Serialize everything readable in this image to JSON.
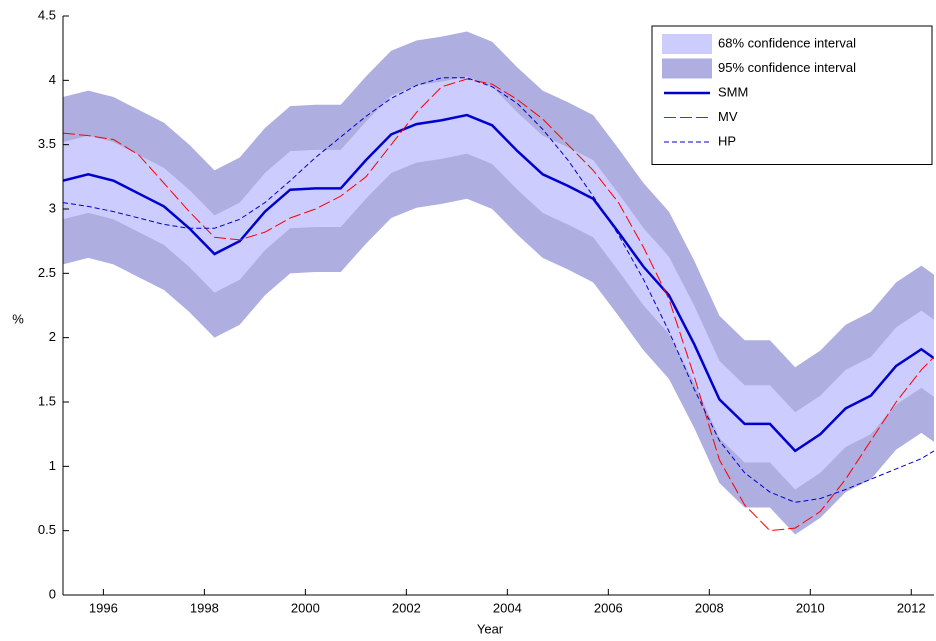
{
  "chart_data": {
    "type": "fan",
    "x_label": "Year",
    "y_label": "%",
    "xlim": [
      1995.2,
      2012.45
    ],
    "ylim": [
      0,
      4.5
    ],
    "xticks": [
      1996,
      1998,
      2000,
      2002,
      2004,
      2006,
      2008,
      2010,
      2012
    ],
    "yticks": [
      0,
      0.5,
      1,
      1.5,
      2,
      2.5,
      3,
      3.5,
      4,
      4.5
    ],
    "legend": "upper right",
    "x": [
      1995.2,
      1995.7,
      1996.2,
      1996.7,
      1997.2,
      1997.7,
      1998.2,
      1998.7,
      1999.2,
      1999.7,
      2000.2,
      2000.7,
      2001.2,
      2001.7,
      2002.2,
      2002.7,
      2003.2,
      2003.7,
      2004.2,
      2004.7,
      2005.2,
      2005.7,
      2006.2,
      2006.7,
      2007.2,
      2007.7,
      2008.2,
      2008.7,
      2009.2,
      2009.7,
      2010.2,
      2010.7,
      2011.2,
      2011.7,
      2012.2,
      2012.45
    ],
    "bands": [
      {
        "name": "68% confidence interval",
        "color": "#ccccff",
        "upper": [
          3.52,
          3.57,
          3.52,
          3.42,
          3.32,
          3.15,
          2.95,
          3.05,
          3.28,
          3.45,
          3.46,
          3.46,
          3.68,
          3.88,
          3.96,
          3.99,
          4.03,
          3.95,
          3.75,
          3.57,
          3.48,
          3.38,
          3.12,
          2.85,
          2.63,
          2.25,
          1.82,
          1.63,
          1.63,
          1.42,
          1.55,
          1.75,
          1.85,
          2.08,
          2.21,
          2.14
        ],
        "lower": [
          2.92,
          2.97,
          2.92,
          2.82,
          2.72,
          2.55,
          2.35,
          2.45,
          2.68,
          2.85,
          2.86,
          2.86,
          3.08,
          3.28,
          3.36,
          3.39,
          3.43,
          3.35,
          3.15,
          2.97,
          2.88,
          2.78,
          2.52,
          2.25,
          2.03,
          1.65,
          1.22,
          1.03,
          1.03,
          0.82,
          0.95,
          1.15,
          1.25,
          1.48,
          1.61,
          1.54
        ]
      },
      {
        "name": "95% confidence interval",
        "color": "#aeaee0",
        "upper": [
          3.87,
          3.92,
          3.87,
          3.77,
          3.67,
          3.5,
          3.3,
          3.4,
          3.63,
          3.8,
          3.81,
          3.81,
          4.03,
          4.23,
          4.31,
          4.34,
          4.38,
          4.3,
          4.1,
          3.92,
          3.83,
          3.73,
          3.47,
          3.2,
          2.98,
          2.6,
          2.17,
          1.98,
          1.98,
          1.77,
          1.9,
          2.1,
          2.2,
          2.43,
          2.56,
          2.49
        ],
        "lower": [
          2.57,
          2.62,
          2.57,
          2.47,
          2.37,
          2.2,
          2.0,
          2.1,
          2.33,
          2.5,
          2.51,
          2.51,
          2.73,
          2.93,
          3.01,
          3.04,
          3.08,
          3.0,
          2.8,
          2.62,
          2.53,
          2.43,
          2.17,
          1.9,
          1.68,
          1.3,
          0.87,
          0.68,
          0.68,
          0.47,
          0.6,
          0.8,
          0.9,
          1.13,
          1.26,
          1.19
        ]
      }
    ],
    "series": [
      {
        "name": "SMM",
        "color": "#0000cc",
        "style": "solid",
        "width": 2.5,
        "values": [
          3.22,
          3.27,
          3.22,
          3.12,
          3.02,
          2.85,
          2.65,
          2.75,
          2.98,
          3.15,
          3.16,
          3.16,
          3.38,
          3.58,
          3.66,
          3.69,
          3.73,
          3.65,
          3.45,
          3.27,
          3.18,
          3.08,
          2.82,
          2.55,
          2.33,
          1.95,
          1.52,
          1.33,
          1.33,
          1.12,
          1.25,
          1.45,
          1.55,
          1.78,
          1.91,
          1.84
        ]
      },
      {
        "name": "MV",
        "color": "#ff0000",
        "style": "long-dashed",
        "width": 1,
        "values": [
          3.59,
          3.57,
          3.54,
          3.42,
          3.2,
          2.98,
          2.78,
          2.76,
          2.82,
          2.93,
          3.0,
          3.1,
          3.25,
          3.5,
          3.75,
          3.95,
          4.01,
          3.97,
          3.85,
          3.7,
          3.5,
          3.3,
          3.05,
          2.7,
          2.3,
          1.7,
          1.05,
          0.7,
          0.5,
          0.52,
          0.65,
          0.9,
          1.2,
          1.5,
          1.75,
          1.85
        ]
      },
      {
        "name": "HP",
        "color": "#0000cc",
        "style": "dashed",
        "width": 1,
        "values": [
          3.05,
          3.02,
          2.98,
          2.93,
          2.88,
          2.85,
          2.85,
          2.92,
          3.05,
          3.22,
          3.4,
          3.56,
          3.72,
          3.86,
          3.96,
          4.02,
          4.02,
          3.95,
          3.82,
          3.62,
          3.38,
          3.1,
          2.8,
          2.45,
          2.05,
          1.6,
          1.2,
          0.95,
          0.8,
          0.72,
          0.75,
          0.82,
          0.9,
          0.98,
          1.06,
          1.12
        ]
      }
    ]
  }
}
